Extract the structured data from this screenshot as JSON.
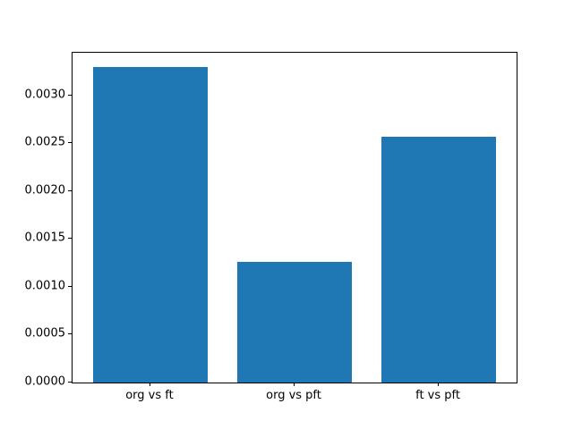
{
  "chart_data": {
    "type": "bar",
    "categories": [
      "org vs ft",
      "org vs pft",
      "ft vs pft"
    ],
    "values": [
      0.0033,
      0.00126,
      0.00257
    ],
    "title": "",
    "xlabel": "",
    "ylabel": "",
    "ylim": [
      0,
      0.003447
    ],
    "xlim": [
      -0.54,
      2.54
    ],
    "bar_width": 0.8,
    "yticks": [
      0,
      0.0005,
      0.001,
      0.0015,
      0.002,
      0.0025,
      0.003
    ],
    "ytick_labels": [
      "0.0000",
      "0.0005",
      "0.0010",
      "0.0015",
      "0.0020",
      "0.0025",
      "0.0030"
    ],
    "bar_color": "#1f77b4",
    "spine_color": "#000000",
    "text_color": "#000000",
    "background": "#ffffff",
    "grid": false,
    "legend": null
  }
}
